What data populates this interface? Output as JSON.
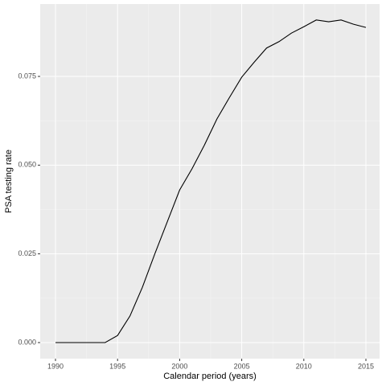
{
  "chart_data": {
    "type": "line",
    "x": [
      1990,
      1991,
      1992,
      1993,
      1994,
      1995,
      1996,
      1997,
      1998,
      1999,
      2000,
      2001,
      2002,
      2003,
      2004,
      2005,
      2006,
      2007,
      2008,
      2009,
      2010,
      2011,
      2012,
      2013,
      2014,
      2015
    ],
    "series": [
      {
        "color": "#000000",
        "values": [
          0,
          0,
          0,
          0,
          0,
          0.002,
          0.0075,
          0.0156,
          0.025,
          0.034,
          0.043,
          0.049,
          0.0557,
          0.063,
          0.069,
          0.0748,
          0.079,
          0.083,
          0.0848,
          0.0872,
          0.089,
          0.0909,
          0.0904,
          0.0909,
          0.0897,
          0.0888
        ]
      }
    ],
    "xlabel": "Calendar period (years)",
    "ylabel": "PSA testing rate",
    "xlim": [
      1988.77,
      2016.1
    ],
    "ylim": [
      -0.00453,
      0.0954
    ],
    "xticks": [
      1990,
      1995,
      2000,
      2005,
      2010,
      2015
    ],
    "yticks": [
      {
        "value": 0,
        "label": "0.000"
      },
      {
        "value": 0.025,
        "label": "0.025"
      },
      {
        "value": 0.05,
        "label": "0.050"
      },
      {
        "value": 0.075,
        "label": "0.075"
      }
    ],
    "grid": true
  }
}
